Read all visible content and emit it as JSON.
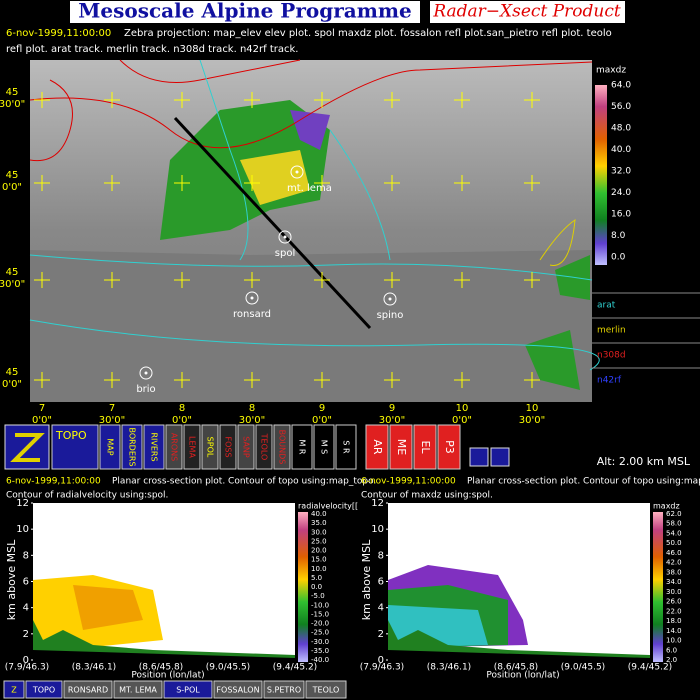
{
  "header": {
    "title": "Mesoscale Alpine Programme",
    "subtitle": "Radar−Xsect Product"
  },
  "info_line": {
    "date": "6-nov-1999,11:00:00",
    "text": "Zebra projection: map_elev elev plot. spol maxdz plot. fossalon refl plot.san_pietro refl plot. teolo",
    "text2": "refl plot. arat track.  merlin track.  n308d track.  n42rf track."
  },
  "map": {
    "lat_labels": [
      {
        "deg": "45",
        "min": "30'0\""
      },
      {
        "deg": "45",
        "min": "0'0\""
      },
      {
        "deg": "45",
        "min": "30'0\""
      },
      {
        "deg": "45",
        "min": "0'0\""
      }
    ],
    "lon_labels": [
      {
        "deg": "7",
        "min": "0'0\""
      },
      {
        "deg": "7",
        "min": "30'0\""
      },
      {
        "deg": "8",
        "min": "0'0\""
      },
      {
        "deg": "8",
        "min": "30'0\""
      },
      {
        "deg": "9",
        "min": "0'0\""
      },
      {
        "deg": "9",
        "min": "30'0\""
      },
      {
        "deg": "10",
        "min": "0'0\""
      },
      {
        "deg": "10",
        "min": "30'0\""
      }
    ],
    "stations": [
      "mt. lema",
      "spol",
      "ronsard",
      "spino",
      "brio"
    ],
    "colorbar": {
      "title": "maxdz",
      "ticks": [
        "64.0",
        "56.0",
        "48.0",
        "40.0",
        "32.0",
        "24.0",
        "16.0",
        "8.0",
        "0.0"
      ]
    },
    "tracks": [
      "arat",
      "merlin",
      "n308d",
      "n42rf"
    ]
  },
  "toolbar": {
    "buttons": [
      "TOPO",
      "MAP",
      "BORDERS",
      "RIVERS",
      "ARONS",
      "LEMA",
      "SPOL",
      "FOSS",
      "SANP",
      "TEOLO",
      "BOUNDS",
      "M R",
      "M S",
      "S R",
      "AR",
      "ME",
      "EL",
      "P3"
    ],
    "altitude": "Alt: 2.00 km MSL"
  },
  "panels": [
    {
      "date": "6-nov-1999,11:00:00",
      "line1": "Planar cross-section plot.  Contour of topo using:map_topo.",
      "line2": "Contour of radialvelocity using:spol.",
      "y_label": "km above MSL",
      "y_ticks": [
        "0",
        "2",
        "4",
        "6",
        "8",
        "10",
        "12"
      ],
      "x_ticks": [
        "(7.9/46.3)",
        "(8.3/46.1)",
        "(8.6/45.8)",
        "(9.0/45.5)",
        "(9.4/45.2)"
      ],
      "x_label": "Position (lon/lat)",
      "colorbar_title": "radialvelocity[[",
      "colorbar_ticks": [
        "40.0",
        "35.0",
        "30.0",
        "25.0",
        "20.0",
        "15.0",
        "10.0",
        "5.0",
        "0.0",
        "-5.0",
        "-10.0",
        "-15.0",
        "-20.0",
        "-25.0",
        "-30.0",
        "-35.0",
        "-40.0"
      ]
    },
    {
      "date": "6-nov-1999,11:00:00",
      "line1": "Planar cross-section plot.  Contour of topo using:map_topo.",
      "line2": "Contour of maxdz using:spol.",
      "y_label": "km above MSL",
      "y_ticks": [
        "0",
        "2",
        "4",
        "6",
        "8",
        "10",
        "12"
      ],
      "x_ticks": [
        "(7.9/46.3)",
        "(8.3/46.1)",
        "(8.6/45.8)",
        "(9.0/45.5)",
        "(9.4/45.2)"
      ],
      "x_label": "Position (lon/lat)",
      "colorbar_title": "maxdz",
      "colorbar_ticks": [
        "62.0",
        "58.0",
        "54.0",
        "50.0",
        "46.0",
        "42.0",
        "38.0",
        "34.0",
        "30.0",
        "26.0",
        "22.0",
        "18.0",
        "14.0",
        "10.0",
        "6.0",
        "2.0"
      ]
    }
  ],
  "bottom_bar": [
    "Z",
    "TOPO",
    "RONSARD",
    "MT. LEMA",
    "S-POL",
    "FOSSALON",
    "S.PETRO",
    "TEOLO"
  ]
}
